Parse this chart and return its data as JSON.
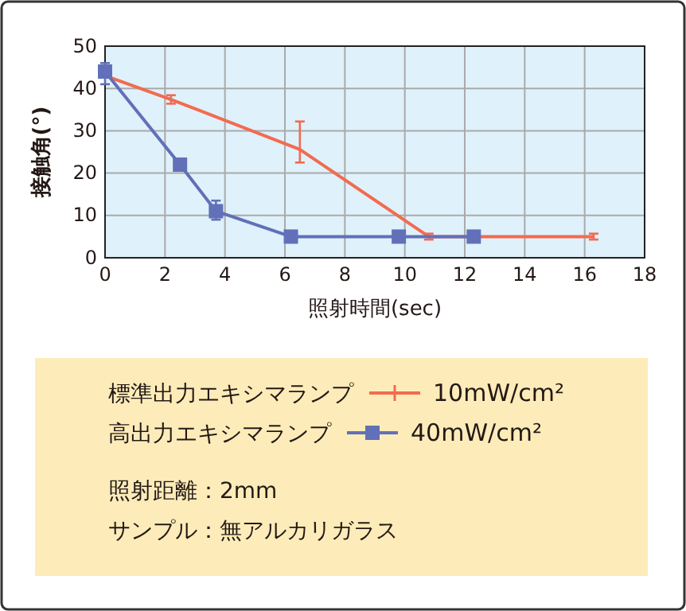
{
  "chart_data": {
    "type": "line",
    "xlabel": "照射時間(sec)",
    "ylabel": "接触角(°)",
    "xlim": [
      0,
      18
    ],
    "xticks": [
      0,
      2,
      4,
      6,
      8,
      10,
      12,
      14,
      16,
      18
    ],
    "ylim": [
      0,
      50
    ],
    "yticks": [
      0,
      10,
      20,
      30,
      40,
      50
    ],
    "grid": true,
    "legend": "bottom",
    "series": [
      {
        "name": "標準出力エキシマランプ",
        "color": "#f26b50",
        "marker": "none",
        "x": [
          0,
          2.2,
          6.5,
          10.8,
          16.3
        ],
        "values": [
          43,
          37.4,
          25.6,
          5,
          5
        ],
        "errors": [
          null,
          1,
          [
            22.5,
            32.2
          ],
          0.7,
          0.7
        ]
      },
      {
        "name": "高出力エキシマランプ",
        "color": "#6170b8",
        "marker": "square",
        "x": [
          0,
          2.5,
          3.7,
          6.2,
          9.8,
          12.3
        ],
        "values": [
          44,
          22,
          11,
          5,
          5,
          5
        ],
        "errors": [
          [
            41,
            46
          ],
          null,
          [
            9,
            13.5
          ],
          null,
          null,
          null
        ]
      }
    ],
    "annotations": [
      "10mW/cm²",
      "40mW/cm²",
      "照射距離：2mm",
      "サンプル：無アルカリガラス"
    ]
  }
}
